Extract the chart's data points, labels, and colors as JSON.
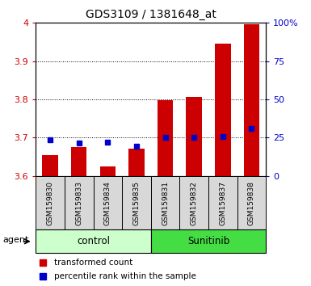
{
  "title": "GDS3109 / 1381648_at",
  "samples": [
    "GSM159830",
    "GSM159833",
    "GSM159834",
    "GSM159835",
    "GSM159831",
    "GSM159832",
    "GSM159837",
    "GSM159838"
  ],
  "red_values": [
    3.655,
    3.675,
    3.625,
    3.672,
    3.798,
    3.806,
    3.945,
    3.996
  ],
  "blue_values": [
    3.695,
    3.685,
    3.688,
    3.678,
    3.7,
    3.7,
    3.703,
    3.725
  ],
  "ylim_left": [
    3.6,
    4.0
  ],
  "ylim_right": [
    0,
    100
  ],
  "yticks_left": [
    3.6,
    3.7,
    3.8,
    3.9,
    4.0
  ],
  "ytick_labels_left": [
    "3.6",
    "3.7",
    "3.8",
    "3.9",
    "4"
  ],
  "yticks_right": [
    0,
    25,
    50,
    75,
    100
  ],
  "ytick_labels_right": [
    "0",
    "25",
    "50",
    "75",
    "100%"
  ],
  "groups": [
    {
      "label": "control",
      "indices": [
        0,
        1,
        2,
        3
      ],
      "color": "#ccffcc"
    },
    {
      "label": "Sunitinib",
      "indices": [
        4,
        5,
        6,
        7
      ],
      "color": "#44dd44"
    }
  ],
  "agent_label": "agent",
  "bar_color": "#cc0000",
  "blue_color": "#0000cc",
  "bar_width": 0.55,
  "base_value": 3.6,
  "plot_bg": "#ffffff",
  "legend_red": "transformed count",
  "legend_blue": "percentile rank within the sample",
  "title_fontsize": 10,
  "tick_fontsize": 8,
  "sample_fontsize": 6.5
}
